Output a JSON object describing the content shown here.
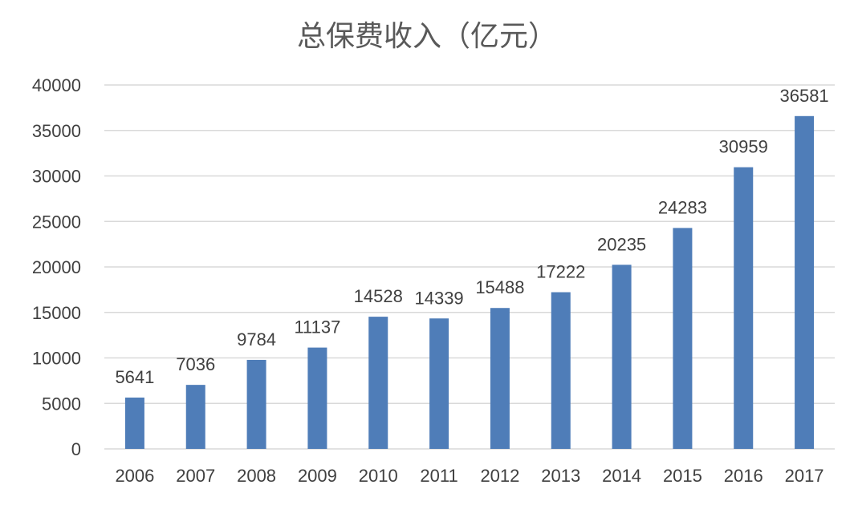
{
  "chart_data": {
    "type": "bar",
    "title": "总保费收入（亿元）",
    "xlabel": "",
    "ylabel": "",
    "categories": [
      "2006",
      "2007",
      "2008",
      "2009",
      "2010",
      "2011",
      "2012",
      "2013",
      "2014",
      "2015",
      "2016",
      "2017"
    ],
    "values": [
      5641,
      7036,
      9784,
      11137,
      14528,
      14339,
      15488,
      17222,
      20235,
      24283,
      30959,
      36581
    ],
    "ylim": [
      0,
      40000
    ],
    "yticks": [
      0,
      5000,
      10000,
      15000,
      20000,
      25000,
      30000,
      35000,
      40000
    ],
    "grid": true,
    "legend": "none",
    "data_labels": true,
    "colors": {
      "bar": "#4f7db8",
      "grid": "#d9d9d9",
      "text": "#404040",
      "title": "#595959"
    }
  }
}
